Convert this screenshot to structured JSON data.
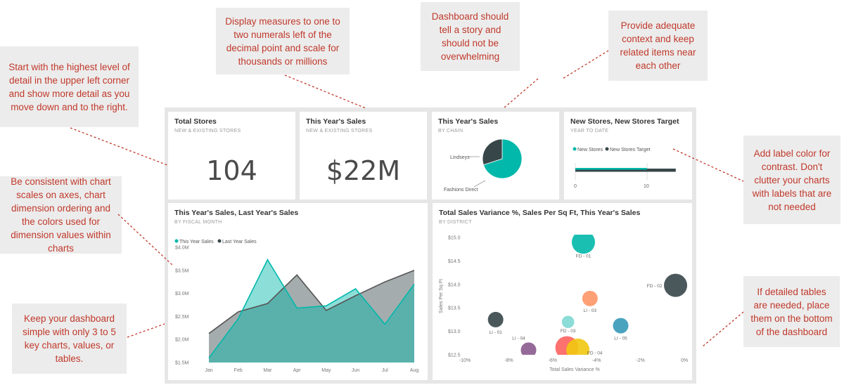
{
  "colors": {
    "note_text": "#c0392b",
    "note_bg": "#ececec",
    "teal": "#01b8aa",
    "dark": "#374649",
    "salmon": "#fd625e",
    "gold": "#f2c80f",
    "purple": "#8a5a8e",
    "orange": "#fe9666",
    "blue": "#3599b8",
    "light_teal": "#7fd8d4"
  },
  "notes": {
    "detail_level": "Start with the highest level of detail in the upper left corner and show more detail as you move down and to the right.",
    "measures": "Display measures to one to two numerals left of the decimal point and scale for thousands or millions",
    "story": "Dashboard should tell a story and should not be overwhelming",
    "context": "Provide adequate context and keep related items near each other",
    "consistent": "Be consistent with chart scales on axes, chart dimension ordering and the colors used for dimension values within charts",
    "simple": "Keep your dashboard simple with only 3 to 5 key charts, values, or tables.",
    "label_color": "Add label color for contrast. Don't clutter your charts with labels that are not needed",
    "detailed_tables": "If detailed tables are needed, place them on the bottom of the dashboard"
  },
  "tiles": {
    "total_stores": {
      "title": "Total Stores",
      "subtitle": "NEW & EXISTING STORES",
      "value": "104"
    },
    "this_year_sales": {
      "title": "This Year's Sales",
      "subtitle": "NEW & EXISTING STORES",
      "value": "$22M"
    },
    "sales_by_chain": {
      "title": "This Year's Sales",
      "subtitle": "BY CHAIN",
      "label_lindseys": "Lindseys",
      "label_fashions": "Fashions Direct"
    },
    "new_stores": {
      "title": "New Stores, New Stores Target",
      "subtitle": "YEAR TO DATE",
      "legend_a": "New Stores",
      "legend_b": "New Stores Target",
      "tick_0": "0",
      "tick_10": "10"
    },
    "line_chart": {
      "title": "This Year's Sales, Last Year's Sales",
      "subtitle": "BY FISCAL MONTH"
    },
    "scatter_chart": {
      "title": "Total Sales Variance %, Sales Per Sq Ft, This Year's Sales",
      "subtitle": "BY DISTRICT"
    }
  },
  "chart_data": [
    {
      "type": "pie",
      "title": "This Year's Sales",
      "categories": [
        "Fashions Direct",
        "Lindseys"
      ],
      "values": [
        70,
        30
      ]
    },
    {
      "type": "bar",
      "title": "New Stores, New Stores Target",
      "series": [
        {
          "name": "New Stores",
          "values": [
            10
          ]
        },
        {
          "name": "New Stores Target",
          "values": [
            14
          ]
        }
      ],
      "xlim": [
        0,
        14
      ],
      "ticks": [
        "0",
        "10"
      ]
    },
    {
      "type": "area",
      "title": "This Year's Sales, Last Year's Sales",
      "categories": [
        "Jan",
        "Feb",
        "Mar",
        "Apr",
        "May",
        "Jun",
        "Jul",
        "Aug"
      ],
      "series": [
        {
          "name": "This Year Sales",
          "values": [
            1.6,
            2.45,
            3.73,
            2.68,
            2.73,
            3.1,
            2.33,
            3.2
          ]
        },
        {
          "name": "Last Year Sales",
          "values": [
            2.13,
            2.6,
            2.78,
            3.4,
            2.63,
            2.95,
            3.25,
            3.5
          ]
        }
      ],
      "ylim": [
        1.5,
        4.0
      ],
      "yticks": [
        "$4.0M",
        "$3.5M",
        "$3.0M",
        "$2.5M",
        "$2.0M",
        "$1.5M"
      ],
      "ytick_values": [
        4.0,
        3.5,
        3.0,
        2.5,
        2.0,
        1.5
      ]
    },
    {
      "type": "scatter",
      "title": "Total Sales Variance %, Sales Per Sq Ft, This Year's Sales",
      "xlabel": "Total Sales Variance %",
      "ylabel": "Sales Per Sq Ft",
      "xlim": [
        -10,
        0
      ],
      "ylim": [
        12.5,
        15.0
      ],
      "xticks": [
        "-10%",
        "-8%",
        "-6%",
        "-4%",
        "-2%",
        "0%"
      ],
      "xtick_values": [
        -10,
        -8,
        -6,
        -4,
        -2,
        0
      ],
      "yticks": [
        "$15.0",
        "$14.5",
        "$14.0",
        "$13.5",
        "$13.0",
        "$12.5"
      ],
      "ytick_values": [
        15.0,
        14.5,
        14.0,
        13.5,
        13.0,
        12.5
      ],
      "points": [
        {
          "label": "FD - 01",
          "x": -4.6,
          "y": 14.9,
          "size": 3,
          "color": "#01b8aa"
        },
        {
          "label": "FD - 02",
          "x": -0.4,
          "y": 13.98,
          "size": 3,
          "color": "#374649"
        },
        {
          "label": "LI - 03",
          "x": -4.3,
          "y": 13.7,
          "size": 2,
          "color": "#fe9666"
        },
        {
          "label": "LI - 01",
          "x": -8.6,
          "y": 13.25,
          "size": 2,
          "color": "#374649"
        },
        {
          "label": "LI - 04",
          "x": -7.1,
          "y": 12.6,
          "size": 2,
          "color": "#8a5a8e"
        },
        {
          "label": "FD - 03",
          "x": -5.3,
          "y": 13.2,
          "size": 1.6,
          "color": "#7fd8d4"
        },
        {
          "label": "LI - 05",
          "x": -2.9,
          "y": 13.12,
          "size": 2,
          "color": "#3599b8"
        },
        {
          "label": "",
          "x": -5.35,
          "y": 12.65,
          "size": 3,
          "color": "#fd625e"
        },
        {
          "label": "FD - 04",
          "x": -4.85,
          "y": 12.6,
          "size": 3,
          "color": "#f2c80f"
        }
      ]
    }
  ]
}
